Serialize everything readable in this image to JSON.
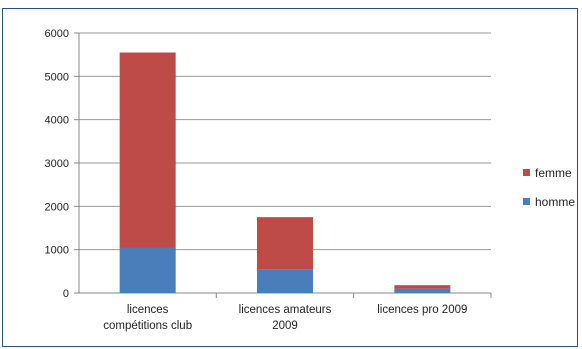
{
  "chart_data": {
    "type": "bar",
    "stacked": true,
    "categories": [
      [
        "licences",
        "compétitions club"
      ],
      [
        "licences amateurs",
        "2009"
      ],
      [
        "licences pro 2009"
      ]
    ],
    "series": [
      {
        "name": "homme",
        "values": [
          1050,
          550,
          100
        ],
        "color": "#4a7ebb"
      },
      {
        "name": "femme",
        "values": [
          4500,
          1200,
          80
        ],
        "color": "#be4b48"
      }
    ],
    "ylim": [
      0,
      6000
    ],
    "yticks": [
      0,
      1000,
      2000,
      3000,
      4000,
      5000,
      6000
    ],
    "grid": true,
    "legend_position": "right",
    "legend_order": [
      "femme",
      "homme"
    ]
  }
}
